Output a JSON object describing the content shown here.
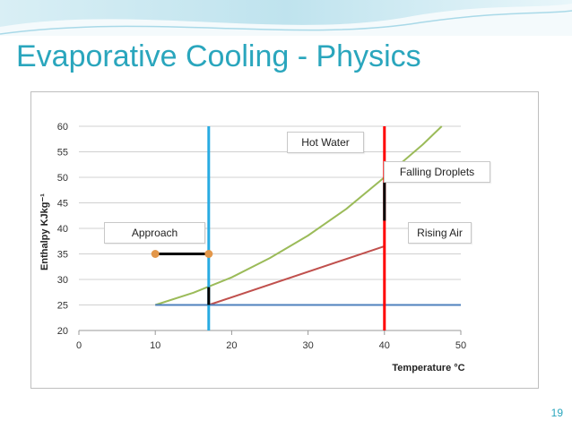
{
  "slide": {
    "title": "Evaporative Cooling - Physics",
    "page_number": "19",
    "accent_color": "#2aa6bd"
  },
  "chart_data": {
    "type": "line",
    "xlabel": "Temperature °C",
    "ylabel": "Enthalpy KJkg⁻¹",
    "xlim": [
      0,
      50
    ],
    "ylim": [
      20,
      60
    ],
    "x_ticks": [
      0,
      10,
      20,
      30,
      40,
      50
    ],
    "y_ticks": [
      20,
      25,
      30,
      35,
      40,
      45,
      50,
      55,
      60
    ],
    "grid": "horizontal",
    "series": [
      {
        "color": "#9bbb59",
        "x": [
          10,
          15,
          20,
          25,
          30,
          35,
          40,
          45,
          47.5
        ],
        "y": [
          25,
          27.4,
          30.4,
          34.2,
          38.6,
          43.8,
          50,
          56.4,
          60
        ]
      },
      {
        "color": "#c0504d",
        "x": [
          17,
          40
        ],
        "y": [
          25,
          36.5
        ]
      },
      {
        "color": "#4f81bd",
        "x": [
          10,
          50
        ],
        "y": [
          25,
          25
        ]
      },
      {
        "color": "#29abe2",
        "x": [
          17,
          17
        ],
        "y": [
          20,
          60
        ]
      },
      {
        "color": "#ff0000",
        "x": [
          40,
          40
        ],
        "y": [
          20,
          60
        ]
      },
      {
        "color": "#000000",
        "x": [
          10,
          17
        ],
        "y": [
          35,
          35
        ]
      },
      {
        "color": "#000000",
        "x": [
          17,
          17
        ],
        "y": [
          25,
          28.5
        ]
      },
      {
        "color": "#000000",
        "x": [
          40,
          40
        ],
        "y": [
          41.5,
          49
        ]
      }
    ],
    "markers": {
      "color": "#e3974a",
      "x": [
        10,
        17
      ],
      "y": [
        35,
        35
      ]
    },
    "annotations": [
      "Hot Water",
      "Falling Droplets",
      "Approach",
      "Rising Air"
    ]
  }
}
